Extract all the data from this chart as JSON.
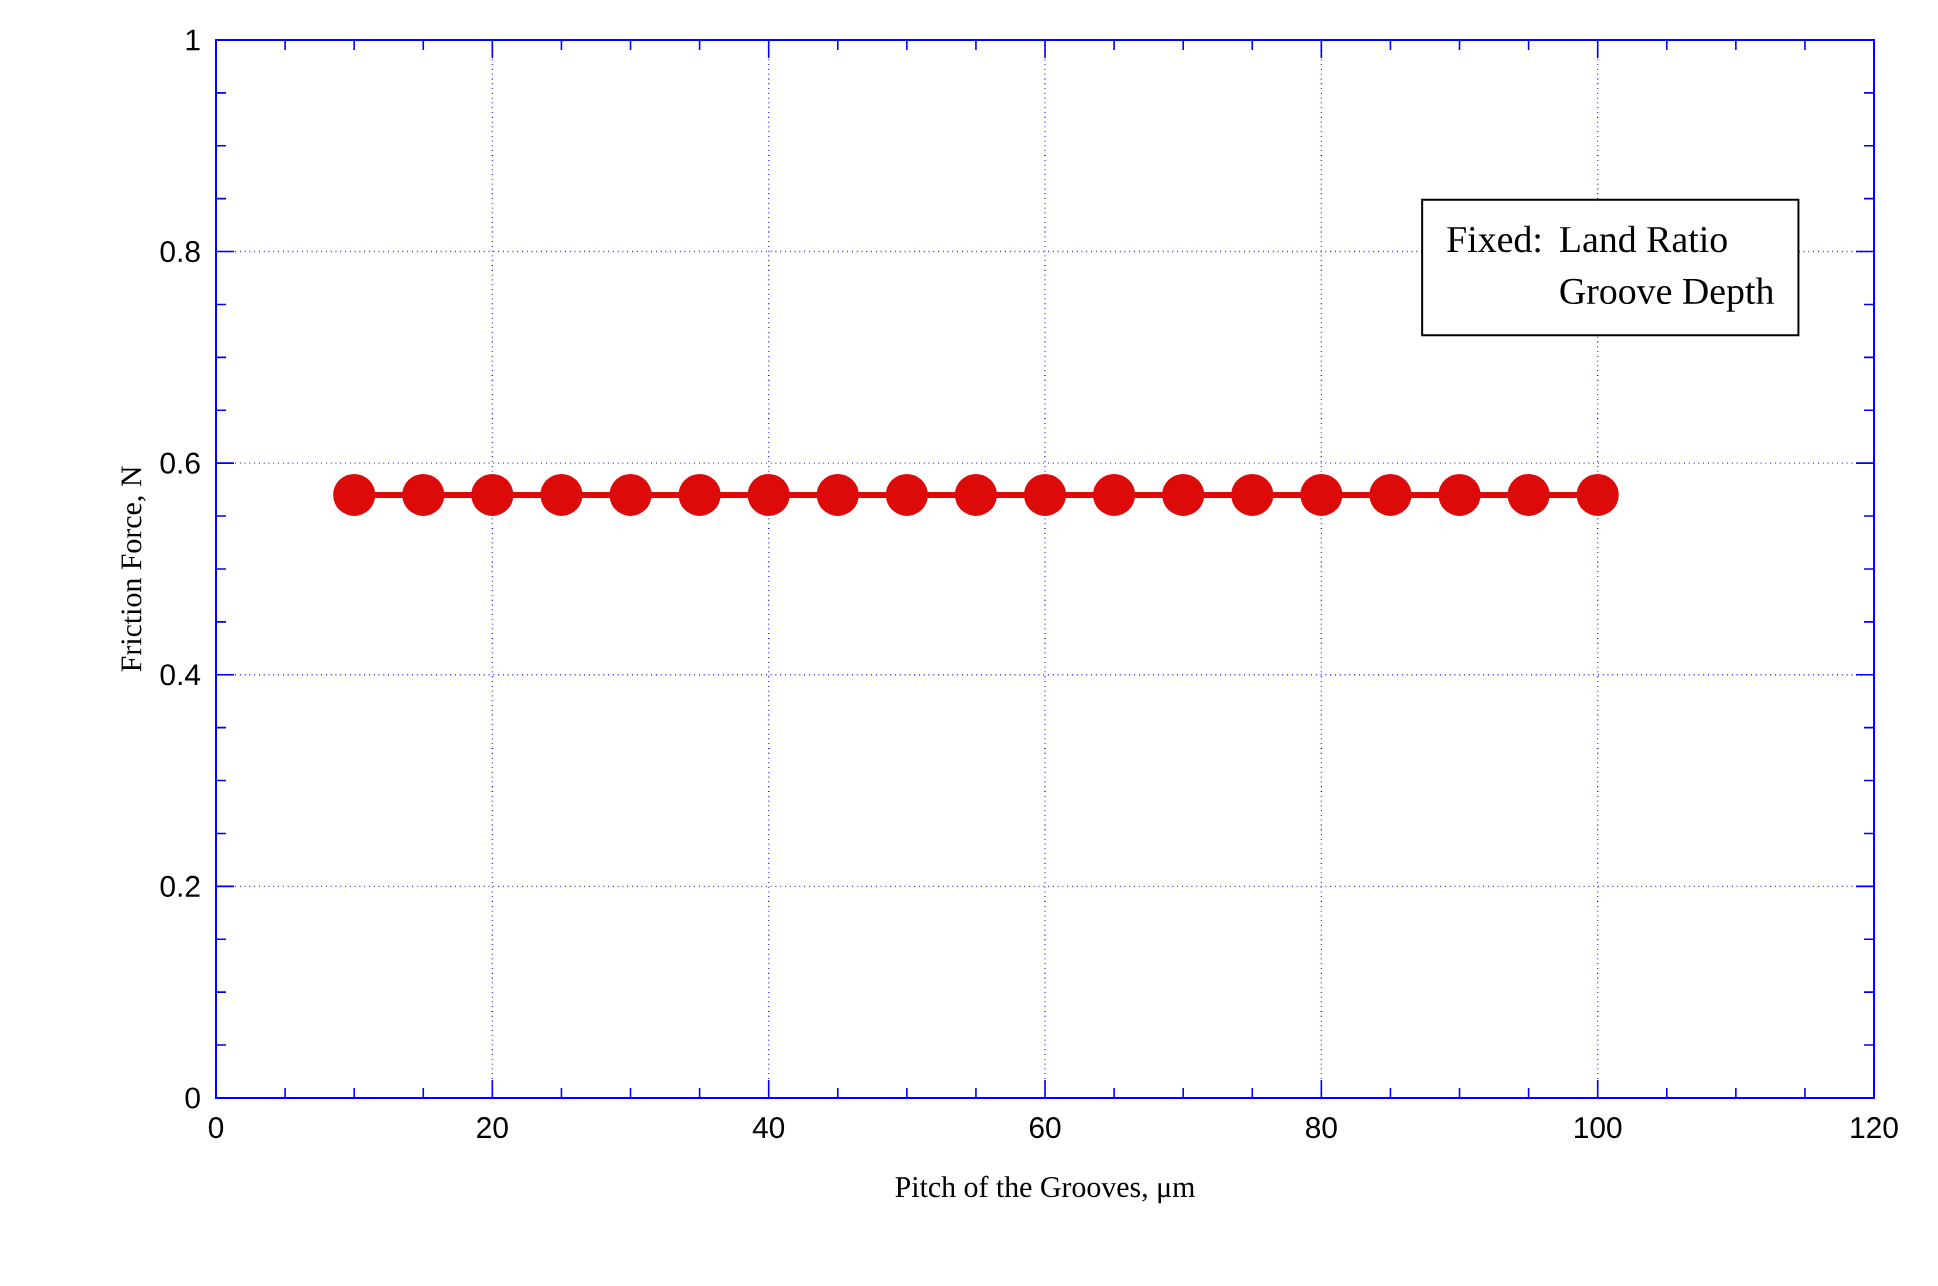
{
  "chart_data": {
    "type": "line",
    "xlabel": "Pitch of the Grooves, μm",
    "ylabel": "Friction Force, N",
    "x": [
      10,
      15,
      20,
      25,
      30,
      35,
      40,
      45,
      50,
      55,
      60,
      65,
      70,
      75,
      80,
      85,
      90,
      95,
      100
    ],
    "series": [
      {
        "color": "#dd0a0a",
        "values": [
          0.57,
          0.57,
          0.57,
          0.57,
          0.57,
          0.57,
          0.57,
          0.57,
          0.57,
          0.57,
          0.57,
          0.57,
          0.57,
          0.57,
          0.57,
          0.57,
          0.57,
          0.57,
          0.57
        ]
      }
    ],
    "xlim": [
      0,
      120
    ],
    "ylim": [
      0,
      1
    ],
    "xticks": [
      0,
      20,
      40,
      60,
      80,
      100,
      120
    ],
    "yticks": [
      0,
      0.2,
      0.4,
      0.6,
      0.8,
      1
    ],
    "grid": true,
    "marker": "circle",
    "line_style": "solid",
    "annotations": [
      "Fixed:",
      "Land Ratio",
      "Groove Depth"
    ]
  }
}
